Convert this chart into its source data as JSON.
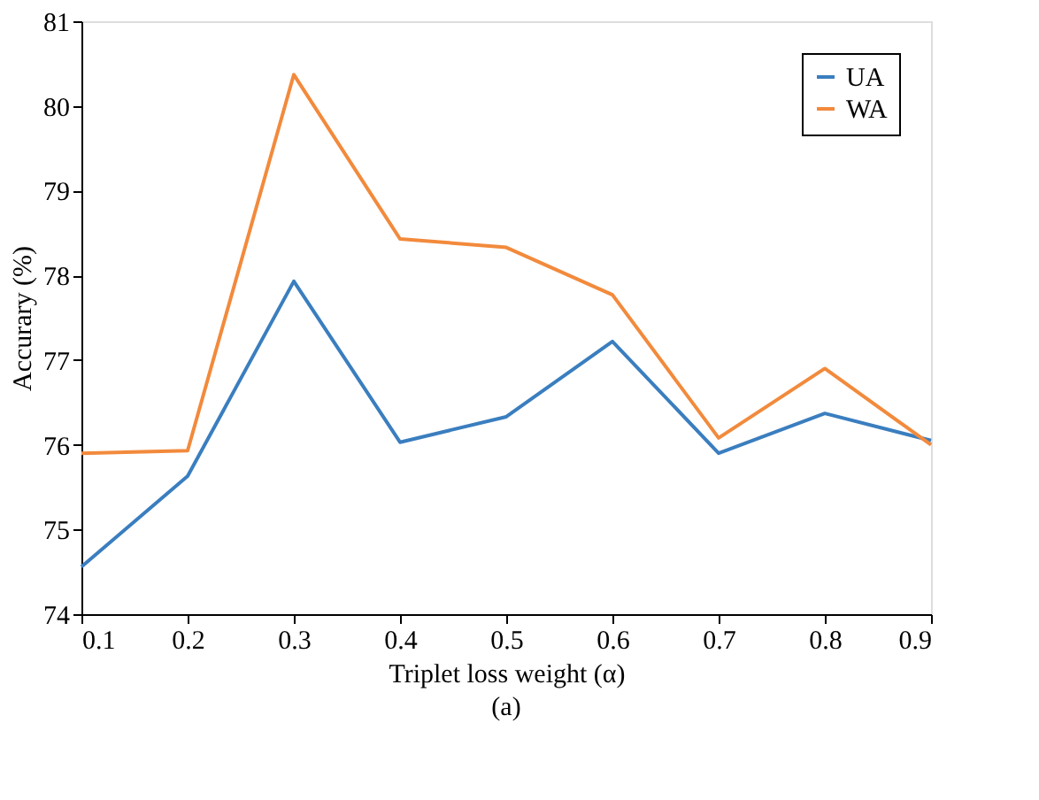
{
  "chart_data": {
    "type": "line",
    "x": [
      0.1,
      0.2,
      0.3,
      0.4,
      0.5,
      0.6,
      0.7,
      0.8,
      0.9
    ],
    "series": [
      {
        "name": "UA",
        "color": "#3a7ebf",
        "values": [
          74.56,
          75.63,
          77.93,
          76.03,
          76.33,
          77.22,
          75.9,
          76.37,
          76.05
        ]
      },
      {
        "name": "WA",
        "color": "#f28a3c",
        "values": [
          75.9,
          75.93,
          80.37,
          78.43,
          78.33,
          77.77,
          76.08,
          76.9,
          76.0
        ]
      }
    ],
    "xlabel": "Triplet loss weight (α)",
    "ylabel": "Accurary (%)",
    "xlim": [
      0.1,
      0.9
    ],
    "xticks": [
      0.1,
      0.2,
      0.3,
      0.4,
      0.5,
      0.6,
      0.7,
      0.8,
      0.9
    ],
    "ylim": [
      74,
      81
    ],
    "yticks": [
      74,
      75,
      76,
      77,
      78,
      79,
      80,
      81
    ],
    "annotations": [
      "(a)"
    ],
    "legend": "top right",
    "grid": false,
    "marker": "none",
    "line_style": "solid"
  }
}
